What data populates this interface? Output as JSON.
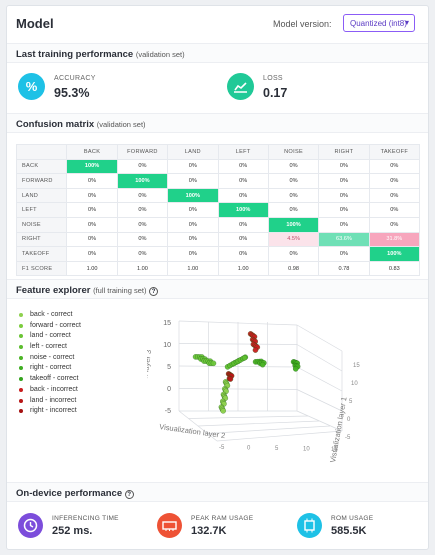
{
  "header": {
    "title": "Model",
    "model_version_label": "Model version:",
    "model_version_value": "Quantized (int8)"
  },
  "training": {
    "title": "Last training performance",
    "subtitle": "(validation set)",
    "accuracy": {
      "label": "ACCURACY",
      "value": "95.3%",
      "icon": "percent-icon",
      "color": "#1ec1e6"
    },
    "loss": {
      "label": "LOSS",
      "value": "0.17",
      "icon": "chart-line-icon",
      "color": "#20c997"
    }
  },
  "confusion": {
    "title": "Confusion matrix",
    "subtitle": "(validation set)",
    "columns": [
      "BACK",
      "FORWARD",
      "LAND",
      "LEFT",
      "NOISE",
      "RIGHT",
      "TAKEOFF"
    ],
    "rows": [
      {
        "label": "BACK",
        "cells": [
          "100%",
          "0%",
          "0%",
          "0%",
          "0%",
          "0%",
          "0%"
        ]
      },
      {
        "label": "FORWARD",
        "cells": [
          "0%",
          "100%",
          "0%",
          "0%",
          "0%",
          "0%",
          "0%"
        ]
      },
      {
        "label": "LAND",
        "cells": [
          "0%",
          "0%",
          "100%",
          "0%",
          "0%",
          "0%",
          "0%"
        ]
      },
      {
        "label": "LEFT",
        "cells": [
          "0%",
          "0%",
          "0%",
          "100%",
          "0%",
          "0%",
          "0%"
        ]
      },
      {
        "label": "NOISE",
        "cells": [
          "0%",
          "0%",
          "0%",
          "0%",
          "100%",
          "0%",
          "0%"
        ]
      },
      {
        "label": "RIGHT",
        "cells": [
          "0%",
          "0%",
          "0%",
          "0%",
          "4.5%",
          "63.6%",
          "31.8%"
        ]
      },
      {
        "label": "TAKEOFF",
        "cells": [
          "0%",
          "0%",
          "0%",
          "0%",
          "0%",
          "0%",
          "100%"
        ]
      }
    ],
    "f1": {
      "label": "F1 SCORE",
      "cells": [
        "1.00",
        "1.00",
        "1.00",
        "1.00",
        "0.98",
        "0.78",
        "0.83"
      ]
    },
    "colors": {
      "correct": "#20d18a",
      "wrong_light": "#fbe3ea",
      "wrong_strong": "#f7a6bd",
      "partial": "#6fe0b6"
    }
  },
  "feature_explorer": {
    "title": "Feature explorer",
    "subtitle": "(full training set)",
    "legend": [
      {
        "label": "back - correct",
        "color": "#8fd14f"
      },
      {
        "label": "forward - correct",
        "color": "#7ccc3f"
      },
      {
        "label": "land - correct",
        "color": "#6bc436"
      },
      {
        "label": "left - correct",
        "color": "#5cbd2e"
      },
      {
        "label": "noise - correct",
        "color": "#4cb526"
      },
      {
        "label": "right - correct",
        "color": "#3fae22"
      },
      {
        "label": "takeoff - correct",
        "color": "#34a41e"
      },
      {
        "label": "back - incorrect",
        "color": "#c81e1e"
      },
      {
        "label": "land - incorrect",
        "color": "#b81717"
      },
      {
        "label": "right - incorrect",
        "color": "#a51212"
      }
    ],
    "axis_x": "Visualization layer 2",
    "axis_y": "Visualization layer 1",
    "axis_z": "Visualization layer 3",
    "z_ticks": [
      "15",
      "10",
      "5",
      "0",
      "-5"
    ],
    "x_ticks": [
      "-5",
      "0",
      "5",
      "10",
      "15"
    ],
    "y_ticks": [
      "-5",
      "0",
      "5",
      "10",
      "15"
    ]
  },
  "ondevice": {
    "title": "On-device performance",
    "inferencing": {
      "label": "INFERENCING TIME",
      "value": "252 ms.",
      "icon": "clock-icon",
      "color": "#7c4ddb"
    },
    "ram": {
      "label": "PEAK RAM USAGE",
      "value": "132.7K",
      "icon": "memory-icon",
      "color": "#ee5235"
    },
    "rom": {
      "label": "ROM USAGE",
      "value": "585.5K",
      "icon": "chip-icon",
      "color": "#1ec1e6"
    }
  }
}
